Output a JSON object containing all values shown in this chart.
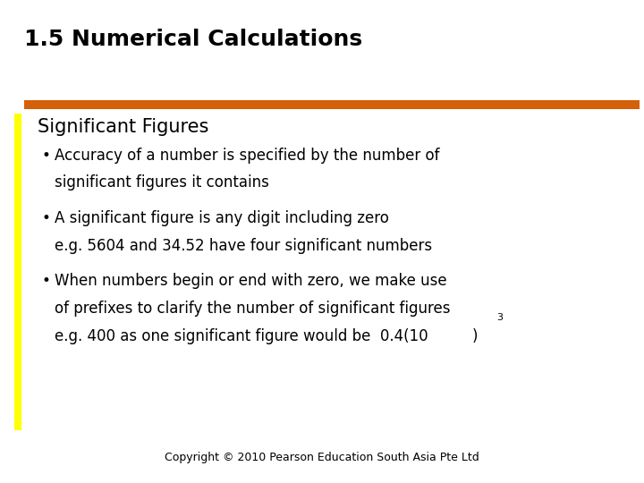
{
  "title": "1.5 Numerical Calculations",
  "section_heading": "Significant Figures",
  "bullet1_line1": "Accuracy of a number is specified by the number of",
  "bullet1_line2": "significant figures it contains",
  "bullet2_line1": "A significant figure is any digit including zero",
  "bullet2_line2": "e.g. 5604 and 34.52 have four significant numbers",
  "bullet3_line1": "When numbers begin or end with zero, we make use",
  "bullet3_line2": "of prefixes to clarify the number of significant figures",
  "bullet3_line3_main": "e.g. 400 as one significant figure would be  0.4(10",
  "bullet3_superscript": "3",
  "bullet3_line3_end": ")",
  "copyright": "Copyright © 2010 Pearson Education South Asia Pte Ltd",
  "bg_color": "#ffffff",
  "title_color": "#000000",
  "orange_bar_color": "#d4600a",
  "yellow_bar_color": "#ffff00",
  "title_fontsize": 18,
  "heading_fontsize": 15,
  "body_fontsize": 12,
  "copyright_fontsize": 9
}
